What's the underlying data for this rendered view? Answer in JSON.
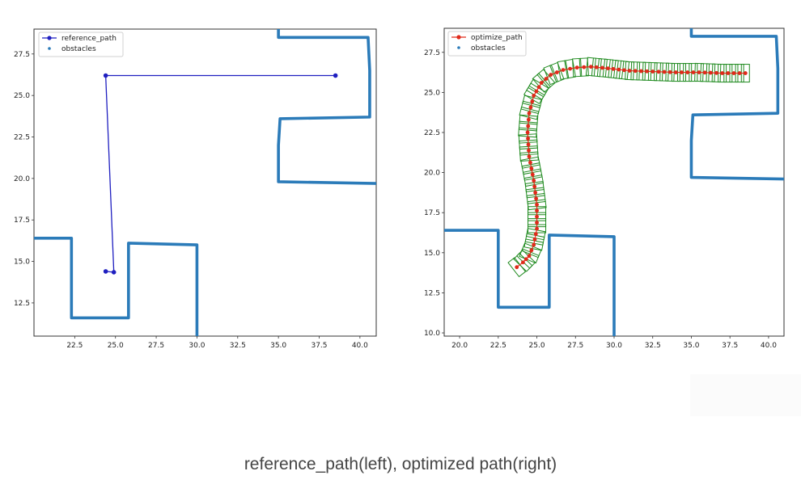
{
  "caption": "reference_path(left), optimized path(right)",
  "colors": {
    "obstacles": "#2b7bb9",
    "reference_path": "#1f1fc0",
    "optimize_path": "#e02a1a",
    "footprint": "#1f8a1f"
  },
  "chart_data": [
    {
      "type": "line",
      "name": "left",
      "xlim": [
        20.0,
        41.0
      ],
      "ylim": [
        10.5,
        29.0
      ],
      "xticks": [
        22.5,
        25.0,
        27.5,
        30.0,
        32.5,
        35.0,
        37.5,
        40.0
      ],
      "yticks": [
        12.5,
        15.0,
        17.5,
        20.0,
        22.5,
        25.0,
        27.5
      ],
      "xtick_labels": [
        "22.5",
        "25.0",
        "27.5",
        "30.0",
        "32.5",
        "35.0",
        "37.5",
        "40.0"
      ],
      "ytick_labels": [
        "12.5",
        "15.0",
        "17.5",
        "20.0",
        "22.5",
        "25.0",
        "27.5"
      ],
      "legend": [
        "reference_path",
        "obstacles"
      ],
      "series": [
        {
          "name": "reference_path",
          "x": [
            24.4,
            24.9,
            24.4,
            38.5
          ],
          "y": [
            14.4,
            14.35,
            26.2,
            26.2
          ]
        }
      ],
      "obstacles": [
        {
          "x": [
            20.0,
            22.3,
            22.3,
            25.8,
            25.8,
            30.0,
            30.0
          ],
          "y": [
            16.4,
            16.4,
            11.6,
            11.6,
            16.1,
            16.0,
            10.5
          ]
        },
        {
          "x": [
            35.0,
            35.0,
            40.5,
            40.6,
            40.6,
            35.1,
            35.1,
            35.0,
            35.0,
            41.0
          ],
          "y": [
            29.0,
            28.5,
            28.5,
            26.5,
            23.7,
            23.6,
            23.6,
            22.0,
            19.8,
            19.7
          ]
        }
      ]
    },
    {
      "type": "line",
      "name": "right",
      "xlim": [
        19.0,
        41.0
      ],
      "ylim": [
        9.8,
        29.0
      ],
      "xticks": [
        20.0,
        22.5,
        25.0,
        27.5,
        30.0,
        32.5,
        35.0,
        37.5,
        40.0
      ],
      "yticks": [
        10.0,
        12.5,
        15.0,
        17.5,
        20.0,
        22.5,
        25.0,
        27.5
      ],
      "xtick_labels": [
        "20.0",
        "22.5",
        "25.0",
        "27.5",
        "30.0",
        "32.5",
        "35.0",
        "37.5",
        "40.0"
      ],
      "ytick_labels": [
        "10.0",
        "12.5",
        "15.0",
        "17.5",
        "20.0",
        "22.5",
        "25.0",
        "27.5"
      ],
      "legend": [
        "optimize_path",
        "obstacles"
      ],
      "series": [
        {
          "name": "optimize_path",
          "x": [
            23.7,
            24.1,
            24.5,
            24.8,
            25.0,
            25.0,
            24.8,
            24.5,
            24.4,
            24.5,
            24.8,
            25.3,
            25.9,
            26.7,
            27.6,
            28.5,
            29.6,
            31.0,
            32.5,
            34.0,
            35.5,
            37.0,
            38.5
          ],
          "y": [
            14.1,
            14.4,
            14.8,
            15.5,
            16.5,
            18.0,
            19.5,
            21.0,
            22.5,
            23.7,
            24.8,
            25.6,
            26.1,
            26.4,
            26.55,
            26.6,
            26.5,
            26.35,
            26.3,
            26.25,
            26.25,
            26.2,
            26.2
          ]
        }
      ],
      "obstacles": [
        {
          "x": [
            19.0,
            22.5,
            22.5,
            25.8,
            25.8,
            30.0,
            30.0
          ],
          "y": [
            16.4,
            16.4,
            11.6,
            11.6,
            16.1,
            16.0,
            9.8
          ]
        },
        {
          "x": [
            35.0,
            35.0,
            40.5,
            40.6,
            40.6,
            35.1,
            35.1,
            35.0,
            35.0,
            41.0
          ],
          "y": [
            29.0,
            28.5,
            28.5,
            26.5,
            23.7,
            23.6,
            23.6,
            22.0,
            19.7,
            19.6
          ]
        }
      ]
    }
  ]
}
